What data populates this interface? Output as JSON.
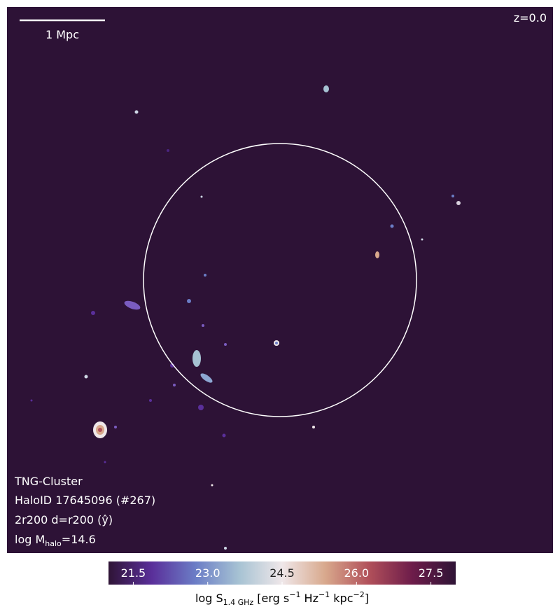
{
  "chart_data": {
    "type": "image",
    "annotations": {
      "scale_bar": "1 Mpc",
      "redshift": "z=0.0",
      "simulation": "TNG-Cluster",
      "halo": "HaloID 17645096 (#267)",
      "projection": "2r200 d=r200 (ŷ)",
      "mass": [
        "log M",
        "halo",
        "=14.6"
      ]
    },
    "background": "#2d1236",
    "colorbar": {
      "clim": [
        21,
        28
      ],
      "ticks": [
        21.5,
        {
          "value": 23,
          "label": "23.0"
        },
        24.5,
        {
          "value": 26,
          "label": "26.0"
        },
        27.5
      ],
      "colormap": [
        "#2f1436",
        "#5a2f9a",
        "#6b7dc6",
        "#a6c2d3",
        "#efe7e9",
        "#d8a88c",
        "#b1505a",
        "#6d1c4a",
        "#2f1436"
      ],
      "label": [
        "log S",
        "1.4 GHz",
        " [erg s",
        "−1",
        " Hz",
        "−1",
        " kpc",
        "−2",
        "]"
      ]
    }
  }
}
